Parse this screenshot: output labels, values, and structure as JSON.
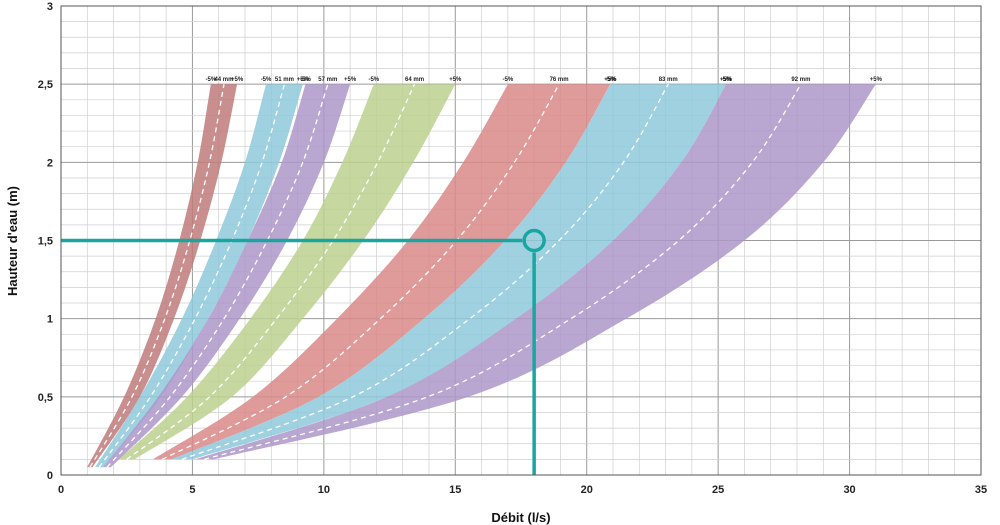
{
  "chart_data": {
    "type": "area",
    "xlabel": "Débit (l/s)",
    "ylabel": "Hauteur d'eau (m)",
    "xlim": [
      0,
      35
    ],
    "ylim": [
      0,
      3
    ],
    "x_ticks": [
      "0",
      "5",
      "10",
      "15",
      "20",
      "25",
      "30",
      "35"
    ],
    "y_ticks": [
      "0",
      "0,5",
      "1",
      "1,5",
      "2",
      "2,5",
      "3"
    ],
    "grid": true,
    "series": [
      {
        "name": "44 mm",
        "minus_label": "-5%",
        "plus_label": "+5%",
        "color": "#bf7a7a",
        "x_low": [
          1.0,
          2.4,
          3.6,
          4.5,
          5.2,
          5.7
        ],
        "x_high": [
          1.2,
          3.0,
          4.3,
          5.3,
          6.1,
          6.7
        ],
        "y": [
          0.05,
          0.5,
          1.0,
          1.5,
          2.0,
          2.5
        ]
      },
      {
        "name": "51 mm",
        "minus_label": "-5%",
        "plus_label": "+5%",
        "color": "#8ec9dc",
        "x_low": [
          1.3,
          3.0,
          4.6,
          5.9,
          7.0,
          7.8
        ],
        "x_high": [
          1.6,
          3.8,
          5.6,
          7.1,
          8.3,
          9.2
        ],
        "y": [
          0.05,
          0.5,
          1.0,
          1.5,
          2.0,
          2.5
        ]
      },
      {
        "name": "57 mm",
        "minus_label": "-5%",
        "plus_label": "+5%",
        "color": "#ad96c9",
        "x_low": [
          1.6,
          3.7,
          5.6,
          7.1,
          8.4,
          9.3
        ],
        "x_high": [
          1.9,
          4.6,
          6.8,
          8.6,
          10.0,
          11.0
        ],
        "y": [
          0.05,
          0.5,
          1.0,
          1.5,
          2.0,
          2.5
        ]
      },
      {
        "name": "64 mm",
        "minus_label": "-5%",
        "plus_label": "+5%",
        "color": "#bcd08e",
        "x_low": [
          2.2,
          4.8,
          7.2,
          9.2,
          10.7,
          11.9
        ],
        "x_high": [
          2.8,
          6.5,
          9.2,
          11.5,
          13.4,
          15.0
        ],
        "y": [
          0.1,
          0.5,
          1.0,
          1.5,
          2.0,
          2.5
        ]
      },
      {
        "name": "76 mm",
        "minus_label": "-5%",
        "plus_label": "+5%",
        "color": "#d98888",
        "x_low": [
          3.5,
          7.3,
          10.5,
          13.2,
          15.3,
          17.0
        ],
        "x_high": [
          4.2,
          9.8,
          13.8,
          16.9,
          19.2,
          20.9
        ],
        "y": [
          0.1,
          0.5,
          1.0,
          1.5,
          2.0,
          2.5
        ]
      },
      {
        "name": "83 mm",
        "minus_label": "-5%",
        "plus_label": "+5%",
        "color": "#8ec9dc",
        "x_low": [
          4.2,
          9.8,
          13.8,
          16.9,
          19.2,
          20.9
        ],
        "x_high": [
          5.0,
          12.4,
          17.3,
          21.0,
          23.6,
          25.3
        ],
        "y": [
          0.1,
          0.5,
          1.0,
          1.5,
          2.0,
          2.5
        ]
      },
      {
        "name": "92 mm",
        "minus_label": "-5%",
        "plus_label": "+5%",
        "color": "#ad96c9",
        "x_low": [
          5.1,
          12.4,
          17.3,
          21.0,
          23.6,
          25.3
        ],
        "x_high": [
          5.8,
          15.5,
          21.5,
          26.0,
          29.0,
          31.0
        ],
        "y": [
          0.1,
          0.5,
          1.0,
          1.5,
          2.0,
          2.5
        ]
      }
    ],
    "annotation": {
      "x": 18.0,
      "y": 1.5,
      "color": "#1aa6a0"
    }
  }
}
